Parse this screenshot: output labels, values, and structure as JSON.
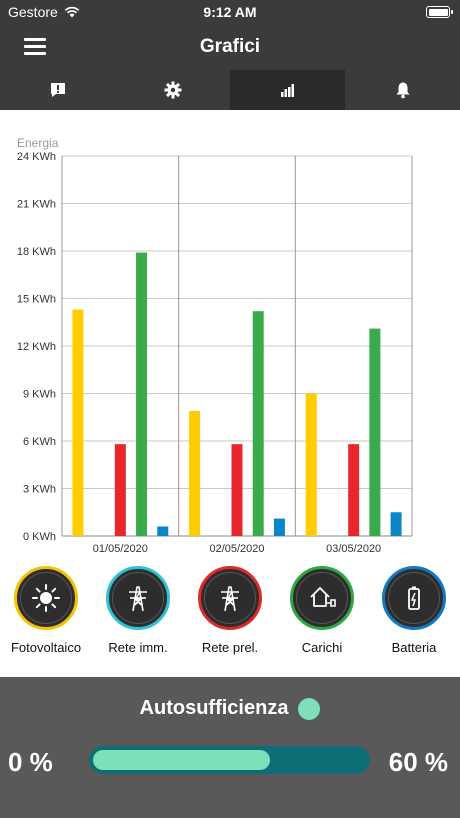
{
  "status_bar": {
    "carrier": "Gestore",
    "time": "9:12 AM"
  },
  "header": {
    "title": "Grafici"
  },
  "tabs": [
    {
      "icon": "alert-icon",
      "active": false
    },
    {
      "icon": "gear-icon",
      "active": false
    },
    {
      "icon": "bar-chart-icon",
      "active": true
    },
    {
      "icon": "bell-icon",
      "active": false
    }
  ],
  "chart_data": {
    "type": "bar",
    "ylabel": "Energia",
    "ylim": [
      0,
      24
    ],
    "y_ticks": [
      "0 KWh",
      "3 KWh",
      "6 KWh",
      "9 KWh",
      "12 KWh",
      "15 KWh",
      "18 KWh",
      "21 KWh",
      "24 KWh"
    ],
    "categories": [
      "01/05/2020",
      "02/05/2020",
      "03/05/2020"
    ],
    "series": [
      {
        "name": "Fotovoltaico",
        "color": "#ffcc00",
        "values": [
          14.3,
          7.9,
          9.0
        ]
      },
      {
        "name": "Rete imm.",
        "color": "#2bb5c8",
        "values": [
          0,
          0,
          0
        ]
      },
      {
        "name": "Rete prel.",
        "color": "#e8262b",
        "values": [
          5.8,
          5.8,
          5.8
        ]
      },
      {
        "name": "Carichi",
        "color": "#3aaa4a",
        "values": [
          17.9,
          14.2,
          13.1
        ]
      },
      {
        "name": "Batteria",
        "color": "#0a86c9",
        "values": [
          0.6,
          1.1,
          1.5
        ]
      }
    ],
    "grid": true
  },
  "legend": [
    {
      "label": "Fotovoltaico",
      "icon": "sun-icon",
      "ring_color": "#f5c400"
    },
    {
      "label": "Rete imm.",
      "icon": "power-tower-icon",
      "ring_color": "#2bc3d6"
    },
    {
      "label": "Rete prel.",
      "icon": "power-tower-icon",
      "ring_color": "#e02a2a"
    },
    {
      "label": "Carichi",
      "icon": "house-plug-icon",
      "ring_color": "#2fa843"
    },
    {
      "label": "Batteria",
      "icon": "battery-icon",
      "ring_color": "#1279c4"
    }
  ],
  "self_sufficiency": {
    "title": "Autosufficienza",
    "min_label": "0 %",
    "max_label": "60 %",
    "progress_fraction": 0.65
  }
}
